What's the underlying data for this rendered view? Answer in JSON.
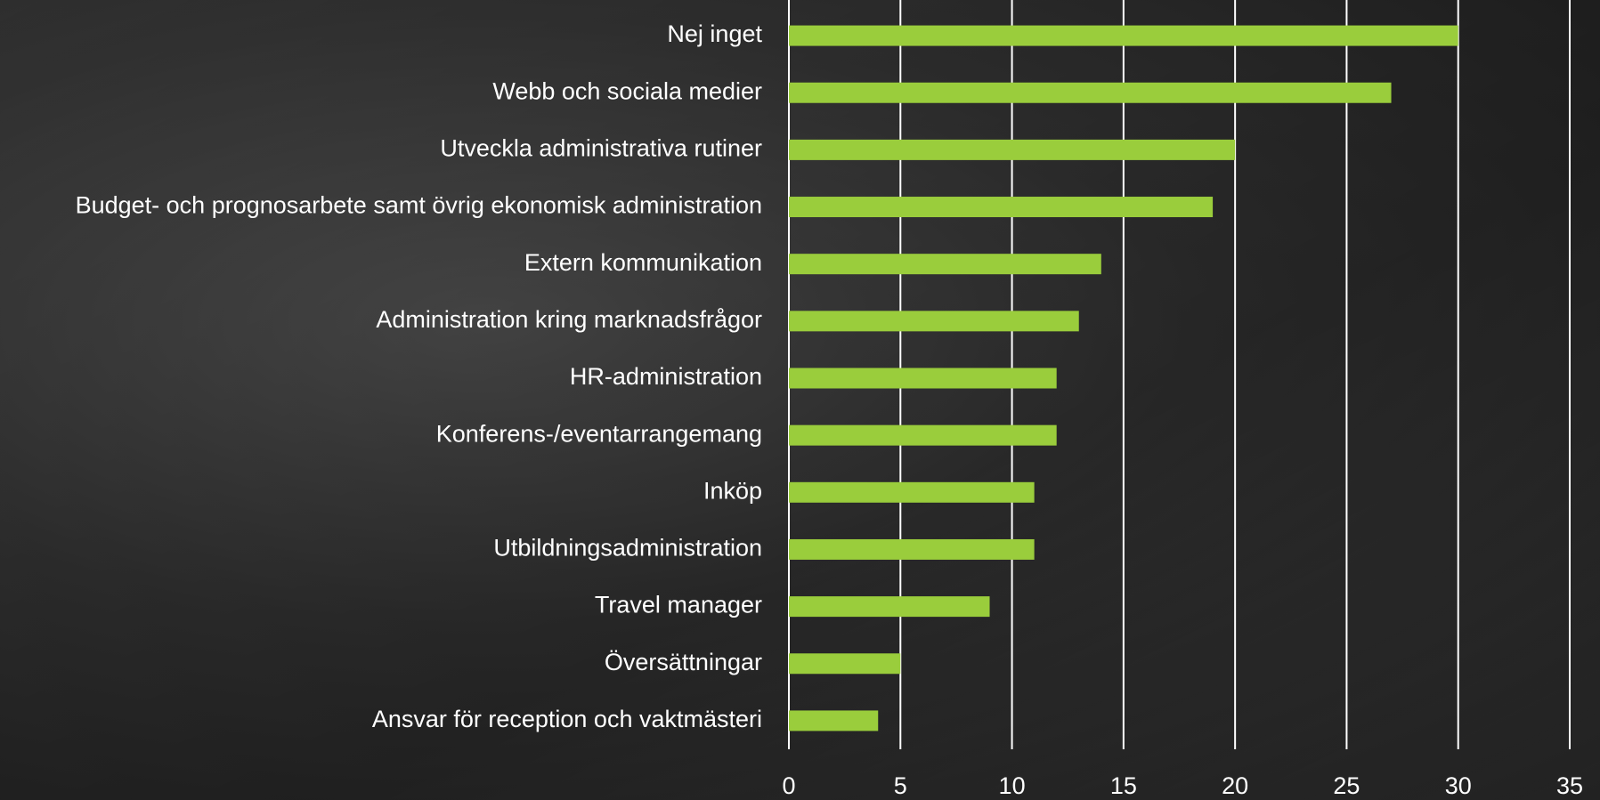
{
  "chart_data": {
    "type": "bar",
    "orientation": "horizontal",
    "categories": [
      "Nej inget",
      "Webb och sociala medier",
      "Utveckla administrativa rutiner",
      "Budget- och prognosarbete samt övrig ekonomisk administration",
      "Extern kommunikation",
      "Administration kring marknadsfrågor",
      "HR-administration",
      "Konferens-/eventarrangemang",
      "Inköp",
      "Utbildningsadministration",
      "Travel manager",
      "Översättningar",
      "Ansvar för reception och vaktmästeri"
    ],
    "values": [
      30,
      27,
      20,
      19,
      14,
      13,
      12,
      12,
      11,
      11,
      9,
      5,
      4
    ],
    "color": "#9acd3c",
    "xlim": [
      0,
      35
    ],
    "xticks": [
      0,
      5,
      10,
      15,
      20,
      25,
      30,
      35
    ],
    "grid": true
  }
}
